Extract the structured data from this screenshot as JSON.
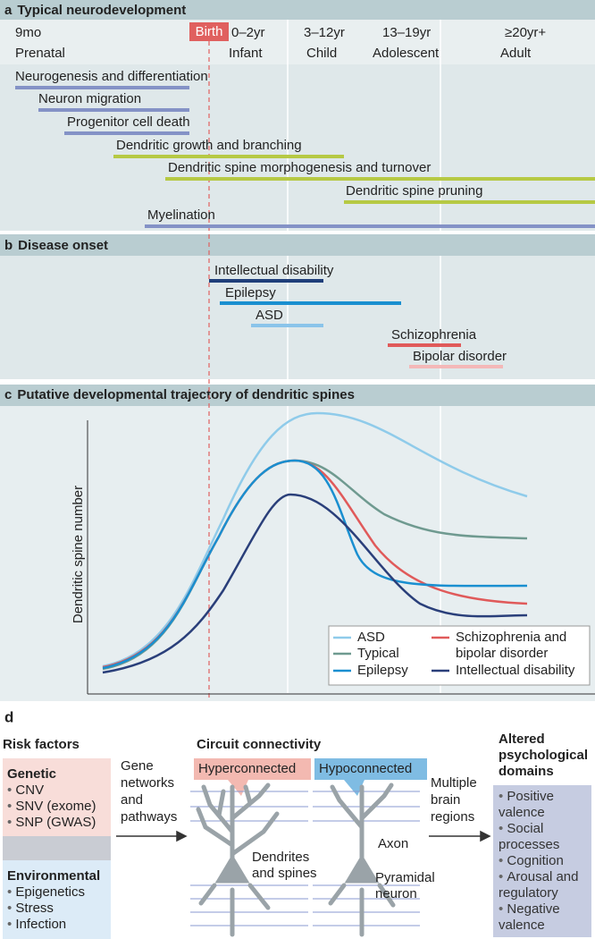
{
  "panel_a": {
    "label": "a",
    "title": "Typical neurodevelopment",
    "birth": "Birth",
    "ages": [
      "9mo",
      "0–2yr",
      "3–12yr",
      "13–19yr",
      "≥20yr+"
    ],
    "periods": [
      "Prenatal",
      "Infant",
      "Child",
      "Adolescent",
      "Adult"
    ],
    "processes": [
      "Neurogenesis and differentiation",
      "Neuron migration",
      "Progenitor cell death",
      "Dendritic growth and branching",
      "Dendritic spine morphogenesis and turnover",
      "Dendritic spine pruning",
      "Myelination"
    ]
  },
  "panel_b": {
    "label": "b",
    "title": "Disease onset",
    "diseases": [
      "Intellectual disability",
      "Epilepsy",
      "ASD",
      "Schizophrenia",
      "Bipolar disorder"
    ]
  },
  "panel_c": {
    "label": "c",
    "title": "Putative developmental trajectory of dendritic spines",
    "y_label": "Dendritic spine number",
    "legend": [
      "ASD",
      "Typical",
      "Epilepsy",
      "Schizophrenia and bipolar disorder",
      "Intellectual disability"
    ]
  },
  "panel_d": {
    "label": "d",
    "risk_title": "Risk factors",
    "genetic": {
      "title": "Genetic",
      "items": [
        "CNV",
        "SNV (exome)",
        "SNP (GWAS)"
      ]
    },
    "environmental": {
      "title": "Environmental",
      "items": [
        "Epigenetics",
        "Stress",
        "Infection"
      ]
    },
    "gene_networks": "Gene networks and pathways",
    "circuit_title": "Circuit connectivity",
    "hyper": "Hyperconnected",
    "hypo": "Hypoconnected",
    "dendrites": "Dendrites and spines",
    "axon": "Axon",
    "pyramidal": "Pyramidal neuron",
    "regions": "Multiple brain regions",
    "domains_title": "Altered psychological domains",
    "domains": [
      "Positive valence",
      "Social processes",
      "Cognition",
      "Arousal and regulatory",
      "Negative valence"
    ]
  }
}
